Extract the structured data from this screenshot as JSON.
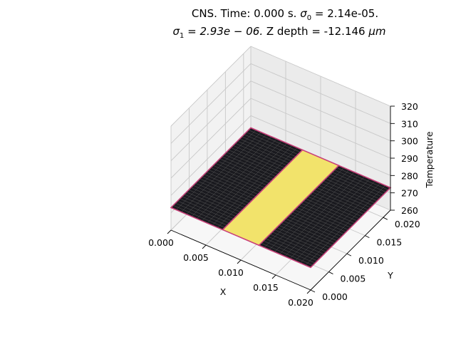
{
  "title": {
    "line1_prefix": "CNS. Time: 0.000 s. ",
    "line1_sigma": "σ",
    "line1_sub": "0",
    "line1_suffix": " = 2.14e-05.",
    "line2_sigma": "σ",
    "line2_sub": "1",
    "line2_expr": " = 2.93e − 06.",
    "line2_suffix": "  Z depth = -12.146 ",
    "line2_unit": "μm"
  },
  "chart_data": {
    "type": "surface",
    "xlabel": "X",
    "ylabel": "Y",
    "zlabel": "Temperature",
    "xlim": [
      0,
      0.02
    ],
    "ylim": [
      0,
      0.022
    ],
    "zlim": [
      260,
      320
    ],
    "x_ticks": [
      "0.000",
      "0.005",
      "0.010",
      "0.015",
      "0.020"
    ],
    "y_ticks": [
      "0.000",
      "0.005",
      "0.010",
      "0.015",
      "0.020"
    ],
    "z_ticks": [
      "260",
      "270",
      "280",
      "290",
      "300",
      "310",
      "320"
    ],
    "surface": {
      "temperature": 273,
      "colormap": "inferno",
      "regions": [
        {
          "x_range": [
            0,
            0.0074
          ],
          "y_range": [
            0,
            0.022
          ],
          "color": "#1a1a1f",
          "mesh": true
        },
        {
          "x_range": [
            0.0074,
            0.0126
          ],
          "y_range": [
            0,
            0.022
          ],
          "color": "#f2e36b",
          "mesh": false
        },
        {
          "x_range": [
            0.0126,
            0.02
          ],
          "y_range": [
            0,
            0.022
          ],
          "color": "#1a1a1f",
          "mesh": true
        }
      ],
      "edge_color": "#c9407a",
      "mesh_color": "#5a5a5a"
    },
    "grid": true
  }
}
